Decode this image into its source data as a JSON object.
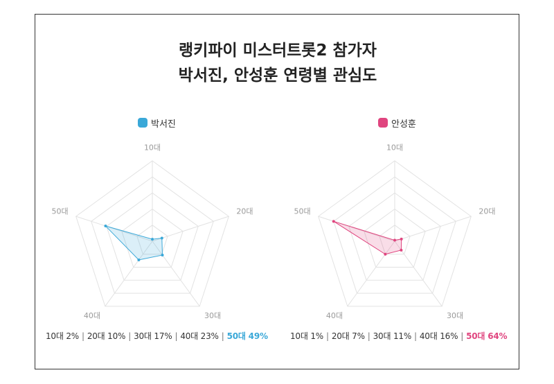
{
  "title": {
    "line1": "랭키파이 미스터트롯2 참가자",
    "line2": "박서진, 안성훈 연령별 관심도"
  },
  "chart_data": [
    {
      "type": "radar",
      "axes": [
        "10대",
        "20대",
        "30대",
        "40대",
        "50대"
      ],
      "series": [
        {
          "name": "박서진",
          "values": [
            2,
            10,
            17,
            23,
            49
          ],
          "color": "#3aa8d8"
        }
      ],
      "rlim": [
        0,
        80
      ],
      "grid": true,
      "summary": [
        {
          "label": "10대 2%"
        },
        {
          "label": "20대 10%"
        },
        {
          "label": "30대 17%"
        },
        {
          "label": "40대 23%"
        },
        {
          "label": "50대 49%",
          "highlight": true
        }
      ]
    },
    {
      "type": "radar",
      "axes": [
        "10대",
        "20대",
        "30대",
        "40대",
        "50대"
      ],
      "series": [
        {
          "name": "안성훈",
          "values": [
            1,
            7,
            11,
            16,
            64
          ],
          "color": "#e0457f"
        }
      ],
      "rlim": [
        0,
        80
      ],
      "grid": true,
      "summary": [
        {
          "label": "10대 1%"
        },
        {
          "label": "20대 7%"
        },
        {
          "label": "30대 11%"
        },
        {
          "label": "40대 16%"
        },
        {
          "label": "50대 64%",
          "highlight": true
        }
      ]
    }
  ],
  "colors": {
    "grid": "#e2e2e2",
    "axis_label": "#999999",
    "frame": "#333333"
  }
}
